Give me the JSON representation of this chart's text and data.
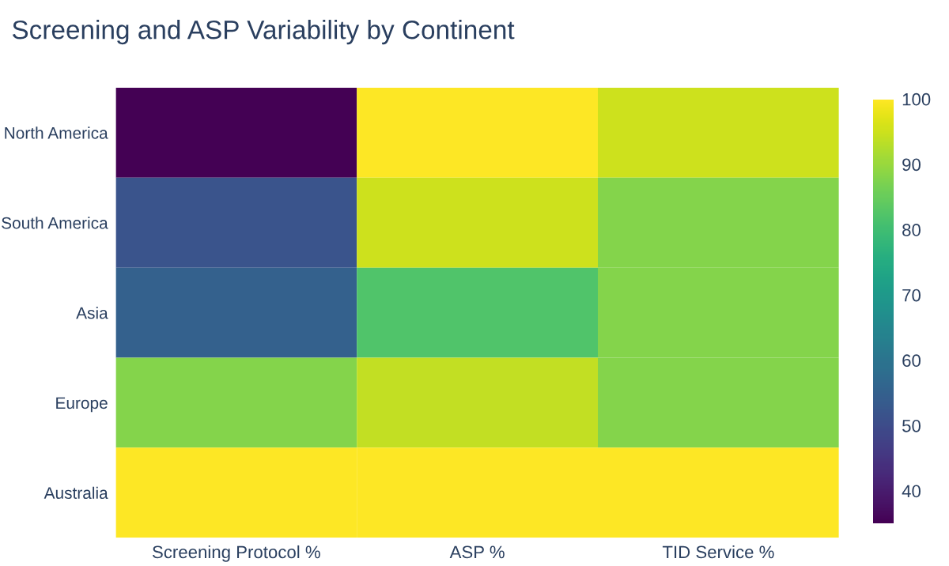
{
  "chart_data": {
    "type": "heatmap",
    "title": "Screening and ASP Variability by Continent",
    "categories": [
      "Screening Protocol %",
      "ASP %",
      "TID Service %"
    ],
    "y_categories": [
      "North America",
      "South America",
      "Asia",
      "Europe",
      "Australia"
    ],
    "cells": [
      [
        35,
        100,
        95
      ],
      [
        52,
        95,
        88
      ],
      [
        55,
        82,
        88
      ],
      [
        88,
        94,
        88
      ],
      [
        100,
        100,
        100
      ]
    ],
    "clim": [
      35,
      100
    ],
    "cticks": [
      40,
      50,
      60,
      70,
      80,
      90,
      100
    ]
  }
}
